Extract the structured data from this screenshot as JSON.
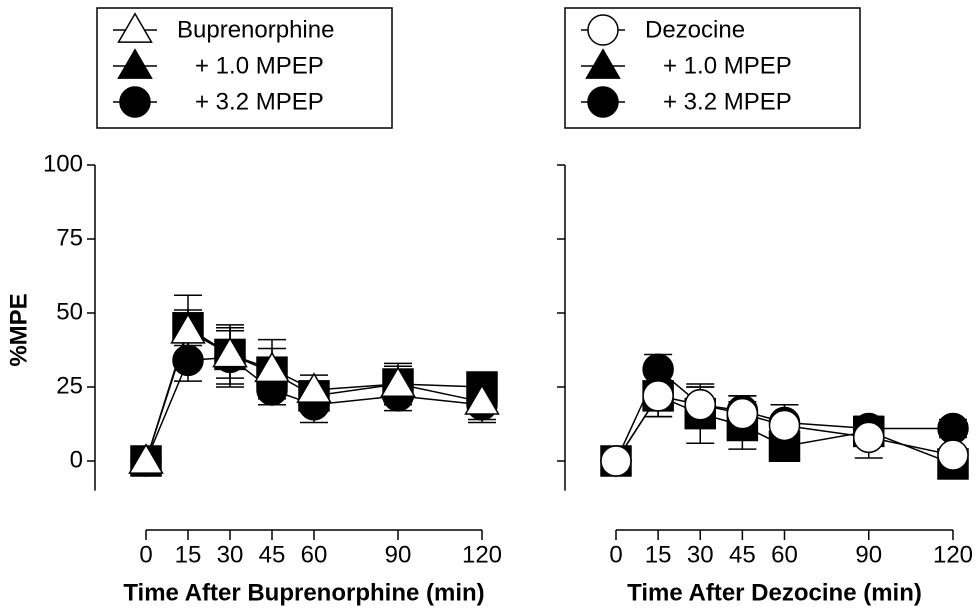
{
  "chart_data": [
    {
      "type": "line",
      "xlabel": "Time After Buprenorphine (min)",
      "ylabel": "%MPE",
      "x": [
        0,
        15,
        30,
        45,
        60,
        90,
        120
      ],
      "xlim": [
        0,
        120
      ],
      "xticks": [
        0,
        15,
        30,
        45,
        60,
        90,
        120
      ],
      "ylim": [
        -10,
        100
      ],
      "yticks": [
        0,
        25,
        50,
        75,
        100
      ],
      "series": [
        {
          "name": "Buprenorphine",
          "color": "#000000",
          "marker": "triangle",
          "legend_marker": "triangle",
          "fill": "#ffffff",
          "values": [
            0,
            44,
            36,
            31,
            24,
            26,
            20
          ],
          "errors": [
            0,
            12,
            10,
            10,
            5,
            7,
            6
          ]
        },
        {
          "name": "+ 1.0 MPEP",
          "color": "#000000",
          "marker": "square",
          "legend_marker": "triangle",
          "fill": "#000000",
          "values": [
            0,
            45,
            36,
            30,
            22,
            26,
            25
          ],
          "errors": [
            0,
            6,
            8,
            8,
            5,
            6,
            4
          ]
        },
        {
          "name": "+ 3.2 MPEP",
          "color": "#000000",
          "marker": "circle",
          "legend_marker": "circle",
          "fill": "#000000",
          "values": [
            0,
            34,
            35,
            24,
            19,
            22,
            19
          ],
          "errors": [
            0,
            7,
            10,
            5,
            6,
            5,
            6
          ]
        }
      ]
    },
    {
      "type": "line",
      "xlabel": "Time After Dezocine (min)",
      "x": [
        0,
        15,
        30,
        45,
        60,
        90,
        120
      ],
      "xlim": [
        0,
        120
      ],
      "xticks": [
        0,
        15,
        30,
        45,
        60,
        90,
        120
      ],
      "series": [
        {
          "name": "Dezocine",
          "color": "#000000",
          "marker": "circle",
          "legend_marker": "circle",
          "fill": "#ffffff",
          "values": [
            0,
            22,
            19,
            16,
            12,
            8,
            2
          ],
          "errors": [
            0,
            7,
            6,
            6,
            7,
            7,
            6
          ]
        },
        {
          "name": "+ 1.0 MPEP",
          "color": "#000000",
          "marker": "square",
          "legend_marker": "triangle",
          "fill": "#000000",
          "values": [
            0,
            22,
            16,
            12,
            5,
            10,
            -1
          ],
          "errors": [
            0,
            7,
            10,
            8,
            5,
            5,
            5
          ]
        },
        {
          "name": "+ 3.2 MPEP",
          "color": "#000000",
          "marker": "circle",
          "legend_marker": "circle",
          "fill": "#000000",
          "values": [
            0,
            31,
            19,
            17,
            13,
            11,
            11
          ],
          "errors": [
            0,
            5,
            6,
            5,
            6,
            4,
            3
          ]
        }
      ]
    }
  ]
}
